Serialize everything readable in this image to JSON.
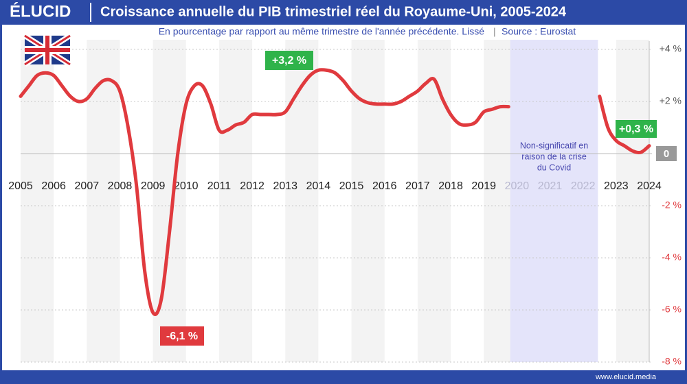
{
  "chart_data": {
    "type": "line",
    "brand": "ÉLUCID",
    "title": "Croissance annuelle du PIB trimestriel réel du Royaume-Uni, 2005-2024",
    "subtitle": "En pourcentage par rapport au même trimestre de l'année précédente. Lissé",
    "source": "Source : Eurostat",
    "footer": "www.elucid.media",
    "x": [
      2005,
      2005.25,
      2005.5,
      2005.75,
      2006,
      2006.25,
      2006.5,
      2006.75,
      2007,
      2007.25,
      2007.5,
      2007.75,
      2008,
      2008.25,
      2008.5,
      2008.75,
      2009,
      2009.25,
      2009.5,
      2009.75,
      2010,
      2010.25,
      2010.5,
      2010.75,
      2011,
      2011.25,
      2011.5,
      2011.75,
      2012,
      2012.25,
      2012.5,
      2012.75,
      2013,
      2013.25,
      2013.5,
      2013.75,
      2014,
      2014.25,
      2014.5,
      2014.75,
      2015,
      2015.25,
      2015.5,
      2015.75,
      2016,
      2016.25,
      2016.5,
      2016.75,
      2017,
      2017.25,
      2017.5,
      2017.75,
      2018,
      2018.25,
      2018.5,
      2018.75,
      2019,
      2019.25,
      2019.5,
      2019.75,
      2021,
      2022.5,
      2022.75,
      2023,
      2023.25,
      2023.5,
      2023.75,
      2024
    ],
    "series": [
      {
        "name": "PIB",
        "color": "#e03a3e",
        "values": [
          2.2,
          2.6,
          3.0,
          3.1,
          3.0,
          2.6,
          2.2,
          2.0,
          2.1,
          2.5,
          2.8,
          2.8,
          2.4,
          1.0,
          -1.2,
          -4.5,
          -6.1,
          -5.6,
          -3.0,
          0.0,
          1.9,
          2.6,
          2.6,
          1.9,
          0.9,
          0.9,
          1.1,
          1.2,
          1.5,
          1.5,
          1.5,
          1.5,
          1.6,
          2.1,
          2.6,
          3.0,
          3.2,
          3.2,
          3.1,
          2.8,
          2.4,
          2.1,
          1.95,
          1.9,
          1.9,
          1.9,
          2.0,
          2.2,
          2.4,
          2.7,
          2.85,
          2.1,
          1.5,
          1.15,
          1.1,
          1.2,
          1.6,
          1.7,
          1.8,
          1.8,
          null,
          2.2,
          1.0,
          0.5,
          0.3,
          0.1,
          0.05,
          0.3
        ]
      }
    ],
    "xlim": [
      2005,
      2024
    ],
    "xticks": [
      2005,
      2006,
      2007,
      2008,
      2009,
      2010,
      2011,
      2012,
      2013,
      2014,
      2015,
      2016,
      2017,
      2018,
      2019,
      2020,
      2021,
      2022,
      2023,
      2024
    ],
    "ylim": [
      -8,
      4
    ],
    "yticks": [
      {
        "value": -8,
        "label": "-8 %"
      },
      {
        "value": -6,
        "label": "-6 %"
      },
      {
        "value": -4,
        "label": "-4 %"
      },
      {
        "value": -2,
        "label": "-2 %"
      },
      0,
      {
        "value": 2,
        "label": "+2 %"
      },
      {
        "value": 4,
        "label": "+4 %"
      }
    ],
    "grid": true,
    "shaded_region": {
      "xlim": [
        2019.8,
        2022.45
      ],
      "color": "#e4e4fa",
      "label": [
        "Non-significatif en",
        "raison de la crise",
        "du Covid"
      ]
    },
    "annotations": [
      {
        "text": "+3,2 %",
        "color": "#2fb34a"
      },
      {
        "text": "-6,1 %",
        "color": "#e03a3e"
      },
      {
        "text": "+0,3 %",
        "color": "#2fb34a"
      }
    ]
  }
}
